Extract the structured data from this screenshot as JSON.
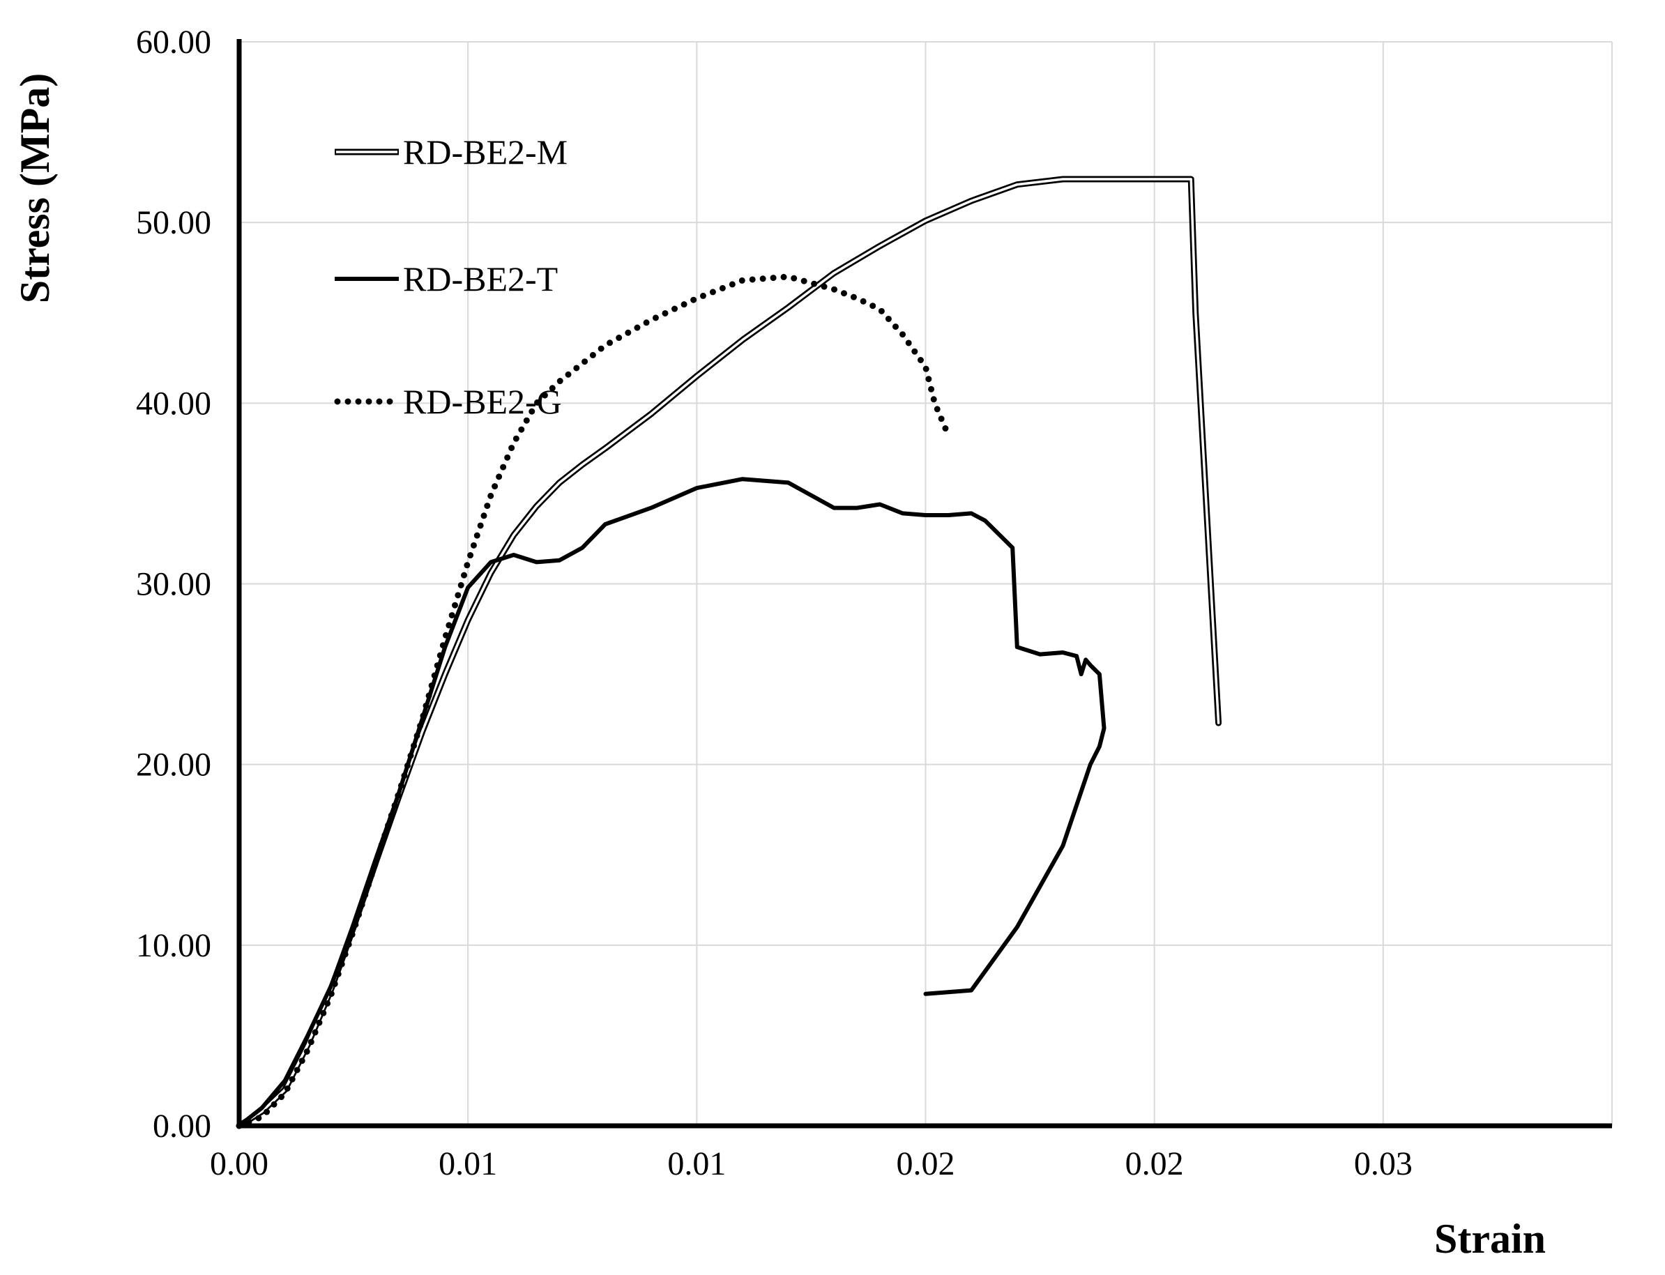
{
  "chart_data": {
    "type": "line",
    "xlabel": "Strain",
    "ylabel": "Stress (MPa)",
    "xlim": [
      0,
      0.03
    ],
    "ylim": [
      0,
      60
    ],
    "x_ticks": [
      "0.00",
      "0.01",
      "0.01",
      "0.02",
      "0.02",
      "0.03"
    ],
    "x_tick_values": [
      0,
      0.005,
      0.01,
      0.015,
      0.02,
      0.025
    ],
    "y_ticks": [
      "0.00",
      "10.00",
      "20.00",
      "30.00",
      "40.00",
      "50.00",
      "60.00"
    ],
    "y_tick_values": [
      0,
      10,
      20,
      30,
      40,
      50,
      60
    ],
    "grid": true,
    "legend_position": "top-left",
    "series": [
      {
        "name": "RD-BE2-M",
        "style": "double",
        "color": "#000000",
        "x": [
          0,
          0.0005,
          0.001,
          0.0015,
          0.002,
          0.0025,
          0.003,
          0.0035,
          0.004,
          0.0045,
          0.005,
          0.0055,
          0.006,
          0.0065,
          0.007,
          0.0075,
          0.008,
          0.009,
          0.01,
          0.011,
          0.012,
          0.013,
          0.014,
          0.015,
          0.016,
          0.017,
          0.018,
          0.019,
          0.02,
          0.0206,
          0.0208,
          0.0209,
          0.0214
        ],
        "y": [
          0,
          0.8,
          2.0,
          4.5,
          7.5,
          11.0,
          14.7,
          18.3,
          21.8,
          25.0,
          28.0,
          30.6,
          32.7,
          34.3,
          35.6,
          36.6,
          37.5,
          39.4,
          41.5,
          43.5,
          45.3,
          47.2,
          48.7,
          50.1,
          51.2,
          52.1,
          52.4,
          52.4,
          52.4,
          52.4,
          52.4,
          45.0,
          22.3
        ]
      },
      {
        "name": "RD-BE2-T",
        "style": "solid",
        "color": "#000000",
        "x": [
          0,
          0.0005,
          0.001,
          0.0015,
          0.002,
          0.0025,
          0.003,
          0.0035,
          0.004,
          0.0045,
          0.005,
          0.0055,
          0.006,
          0.0065,
          0.007,
          0.0075,
          0.008,
          0.009,
          0.01,
          0.011,
          0.012,
          0.013,
          0.0135,
          0.014,
          0.0145,
          0.015,
          0.0155,
          0.016,
          0.0163,
          0.0169,
          0.017,
          0.0175,
          0.018,
          0.0183,
          0.0184,
          0.0185,
          0.0186,
          0.0188,
          0.0189,
          0.0188,
          0.0186,
          0.018,
          0.017,
          0.016,
          0.015
        ],
        "y": [
          0,
          1.0,
          2.5,
          5.0,
          7.7,
          11.0,
          14.7,
          18.5,
          22.5,
          26.5,
          29.8,
          31.2,
          31.6,
          31.2,
          31.3,
          32.0,
          33.3,
          34.2,
          35.3,
          35.8,
          35.6,
          34.2,
          34.2,
          34.4,
          33.9,
          33.8,
          33.8,
          33.9,
          33.5,
          32.0,
          26.5,
          26.1,
          26.2,
          26.0,
          25.0,
          25.8,
          25.5,
          25.0,
          22.0,
          21.0,
          20.0,
          15.5,
          11.0,
          7.5,
          7.3
        ]
      },
      {
        "name": "RD-BE2-G",
        "style": "dotted",
        "color": "#000000",
        "x": [
          0,
          0.0005,
          0.001,
          0.0015,
          0.002,
          0.0025,
          0.003,
          0.0035,
          0.004,
          0.0045,
          0.005,
          0.0055,
          0.006,
          0.0065,
          0.007,
          0.0075,
          0.008,
          0.009,
          0.01,
          0.011,
          0.012,
          0.013,
          0.0135,
          0.014,
          0.0145,
          0.015,
          0.0152,
          0.0154,
          0.0155
        ],
        "y": [
          0,
          0.5,
          1.8,
          4.2,
          7.2,
          10.8,
          14.7,
          18.5,
          22.5,
          27.0,
          31.2,
          34.9,
          37.8,
          40.0,
          41.2,
          42.2,
          43.2,
          44.6,
          45.8,
          46.8,
          47.0,
          46.3,
          45.8,
          45.2,
          43.8,
          42.0,
          40.0,
          38.8,
          38.2
        ]
      }
    ]
  }
}
